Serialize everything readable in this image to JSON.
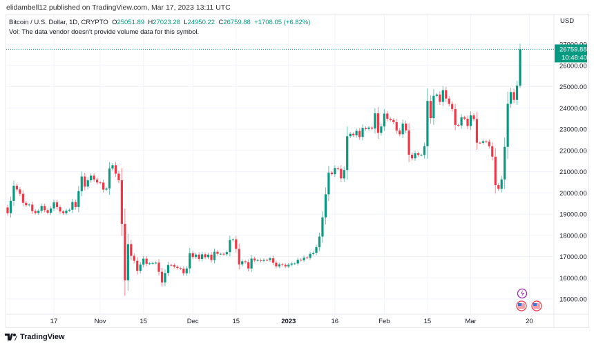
{
  "publisher": "elidambell12 published on TradingView.com, Mar 17, 2023 13:11 UTC",
  "legend": {
    "symbol": "Bitcoin / U.S. Dollar, 1D, CRYPTO",
    "o_label": "O",
    "o": "25051.89",
    "h_label": "H",
    "h": "27023.28",
    "l_label": "L",
    "l": "24950.22",
    "c_label": "C",
    "c": "26759.88",
    "change": "+1708.05 (+6.82%)",
    "vol": "Vol: The data vendor doesn't provide volume data for this symbol."
  },
  "currency": "USD",
  "last_price": {
    "price": "26759.88",
    "countdown": "10:48:40"
  },
  "branding": "TradingView",
  "colors": {
    "up": "#089981",
    "down": "#f23645",
    "event": "#9c27b0"
  },
  "events": [
    {
      "icon": "lightning-icon"
    },
    {
      "icon": "us-flag-icon"
    },
    {
      "icon": "us-flag-icon"
    }
  ],
  "chart_data": {
    "type": "candlestick",
    "first_date": "2022-10-02",
    "ylim": [
      14500,
      27300
    ],
    "y_ticks": [
      "15000.00",
      "16000.00",
      "17000.00",
      "18000.00",
      "19000.00",
      "20000.00",
      "21000.00",
      "22000.00",
      "23000.00",
      "24000.00",
      "25000.00",
      "26000.00",
      "27000.00"
    ],
    "x_ticks": [
      {
        "label": "17",
        "day": 15
      },
      {
        "label": "Nov",
        "day": 30
      },
      {
        "label": "15",
        "day": 44
      },
      {
        "label": "Dec",
        "day": 60
      },
      {
        "label": "15",
        "day": 74
      },
      {
        "label": "2023",
        "day": 91
      },
      {
        "label": "16",
        "day": 106
      },
      {
        "label": "Feb",
        "day": 122
      },
      {
        "label": "15",
        "day": 136
      },
      {
        "label": "Mar",
        "day": 150
      },
      {
        "label": "20",
        "day": 169
      }
    ],
    "first_open": 19312,
    "closes": [
      19044,
      19623,
      20336,
      20160,
      19955,
      19531,
      19417,
      19446,
      19141,
      19051,
      19157,
      19382,
      19185,
      19067,
      19268,
      19549,
      19327,
      19123,
      19041,
      19164,
      19204,
      19570,
      19330,
      20080,
      20771,
      20295,
      20591,
      20809,
      20627,
      20490,
      20483,
      20151,
      20207,
      21148,
      21300,
      20905,
      20591,
      18541,
      15880,
      17586,
      17034,
      16800,
      16330,
      16619,
      16900,
      16662,
      16680,
      16698,
      16712,
      16280,
      15781,
      16226,
      16603,
      16598,
      16522,
      16458,
      16428,
      16212,
      16442,
      17163,
      16977,
      17092,
      16885,
      17105,
      16967,
      17089,
      16837,
      17224,
      17128,
      17128,
      17104,
      17207,
      17781,
      17812,
      17364,
      16631,
      16777,
      16738,
      16439,
      16906,
      16818,
      16830,
      16797,
      16841,
      16833,
      16917,
      16707,
      16541,
      16633,
      16607,
      16537,
      16618,
      16674,
      16674,
      16851,
      16828,
      16952,
      16944,
      17125,
      17180,
      17441,
      17942,
      18845,
      19930,
      20955,
      20880,
      21170,
      21130,
      20680,
      21075,
      22666,
      22780,
      22710,
      22918,
      22633,
      23060,
      23010,
      23076,
      23030,
      23744,
      22826,
      23126,
      23733,
      23491,
      23431,
      23327,
      22937,
      22762,
      23264,
      22939,
      21797,
      21625,
      21862,
      21783,
      21786,
      22201,
      24327,
      23517,
      24570,
      24631,
      24283,
      24838,
      24439,
      24188,
      23947,
      23198,
      23175,
      23555,
      23492,
      23147,
      23647,
      23476,
      22362,
      22354,
      22430,
      22410,
      22197,
      21705,
      20363,
      20187,
      20633,
      22163,
      24197,
      24746,
      24375,
      25052,
      26760
    ],
    "last_candle": {
      "open": 25051.89,
      "high": 27023.28,
      "low": 24950.22,
      "close": 26759.88
    }
  }
}
